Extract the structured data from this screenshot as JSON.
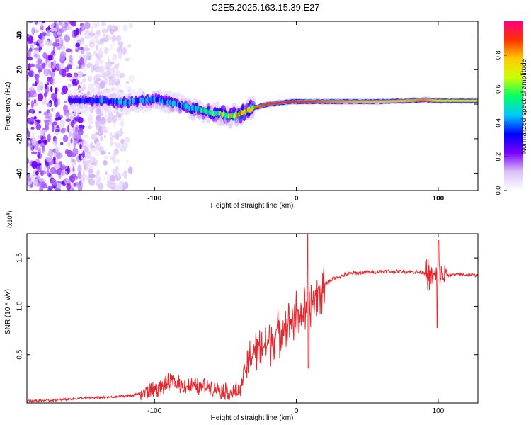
{
  "title": "C2E5.2025.163.15.39.E27",
  "chart_data": [
    {
      "type": "heatmap",
      "xlabel": "Height of straight line (km)",
      "ylabel": "Frequency (Hz)",
      "xlim": [
        -190,
        128
      ],
      "ylim": [
        -50,
        48
      ],
      "xticks": [
        -100,
        0,
        100
      ],
      "yticks": [
        -40,
        -20,
        0,
        20,
        40
      ],
      "colorbar": {
        "label": "Normalized spectral amplitude",
        "range": [
          0,
          1
        ],
        "ticks": [
          0.0,
          0.2,
          0.4,
          0.6,
          0.8
        ],
        "colors": [
          "#ffffff",
          "#d9c2f7",
          "#7a00ff",
          "#0000ff",
          "#00c8ff",
          "#00ff66",
          "#ccff00",
          "#ffcc00",
          "#ff3300",
          "#ff0080"
        ]
      },
      "ridge": {
        "x": [
          -160,
          -140,
          -120,
          -110,
          -100,
          -90,
          -80,
          -70,
          -60,
          -50,
          -45,
          -40,
          -35,
          -30,
          -20,
          -10,
          0,
          10,
          20,
          40,
          60,
          80,
          90,
          100,
          110,
          128
        ],
        "frequency": [
          2,
          2,
          1,
          2,
          3,
          1,
          -1,
          -3,
          -5,
          -6,
          -7,
          -6,
          -4,
          -2,
          0,
          1,
          1.5,
          1.5,
          1.5,
          1.5,
          1.5,
          2,
          2.5,
          2,
          2,
          2
        ],
        "amplitude": [
          0.35,
          0.4,
          0.45,
          0.45,
          0.45,
          0.5,
          0.5,
          0.55,
          0.6,
          0.7,
          0.8,
          0.85,
          0.85,
          0.85,
          0.9,
          0.95,
          0.92,
          0.9,
          0.85,
          0.8,
          0.78,
          0.8,
          0.85,
          0.75,
          0.7,
          0.7
        ]
      },
      "noise_region_x": [
        -190,
        -115
      ]
    },
    {
      "type": "line",
      "xlabel": "Height of straight line (km)",
      "ylabel": "SNR (10 * v/v)",
      "yscale_label": "(x10^4)",
      "xlim": [
        -190,
        128
      ],
      "ylim": [
        0,
        1.75
      ],
      "xticks": [
        -100,
        0,
        100
      ],
      "yticks": [
        0.5,
        1.0,
        1.5
      ],
      "series": [
        {
          "color": "#e8262c",
          "x": [
            -190,
            -170,
            -150,
            -130,
            -115,
            -105,
            -95,
            -88,
            -80,
            -70,
            -62,
            -55,
            -45,
            -40,
            -37,
            -33,
            -30,
            -25,
            -20,
            -15,
            -10,
            -5,
            0,
            5,
            8,
            10,
            13,
            18,
            25,
            35,
            45,
            60,
            75,
            90,
            98,
            100,
            102,
            105,
            115,
            128
          ],
          "y": [
            0.02,
            0.03,
            0.05,
            0.06,
            0.08,
            0.12,
            0.17,
            0.22,
            0.18,
            0.16,
            0.18,
            0.15,
            0.1,
            0.12,
            0.3,
            0.45,
            0.55,
            0.58,
            0.62,
            0.7,
            0.78,
            0.85,
            0.9,
            0.95,
            0.85,
            1.02,
            1.1,
            1.2,
            1.28,
            1.33,
            1.35,
            1.36,
            1.36,
            1.35,
            1.3,
            1.35,
            1.33,
            1.32,
            1.33,
            1.32
          ]
        }
      ]
    }
  ],
  "colors": {
    "line": "#e8262c",
    "axis": "#000000"
  }
}
